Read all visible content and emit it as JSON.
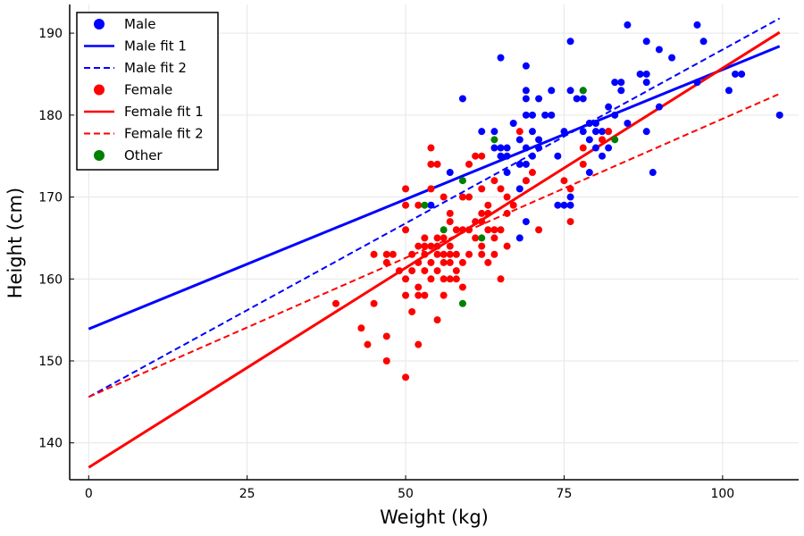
{
  "chart_data": {
    "type": "scatter",
    "title": "",
    "xlabel": "Weight (kg)",
    "ylabel": "Height (cm)",
    "xlim": [
      -3,
      112
    ],
    "ylim": [
      135.5,
      193.5
    ],
    "xticks": [
      0,
      25,
      50,
      75,
      100
    ],
    "yticks": [
      140,
      150,
      160,
      170,
      180,
      190
    ],
    "grid": true,
    "legend_position": "top-left",
    "colors": {
      "male": "#0000ff",
      "female": "#ff0000",
      "other": "#008000"
    },
    "legend": [
      {
        "label": "Male",
        "kind": "marker",
        "color": "#0000ff"
      },
      {
        "label": "Male fit 1",
        "kind": "solid",
        "color": "#0000ff"
      },
      {
        "label": "Male fit 2",
        "kind": "dashed",
        "color": "#0000ff"
      },
      {
        "label": "Female",
        "kind": "marker",
        "color": "#ff0000"
      },
      {
        "label": "Female fit 1",
        "kind": "solid",
        "color": "#ff0000"
      },
      {
        "label": "Female fit 2",
        "kind": "dashed",
        "color": "#ff0000"
      },
      {
        "label": "Other",
        "kind": "marker",
        "color": "#008000"
      }
    ],
    "scatter_series": [
      {
        "name": "Male",
        "color": "#0000ff",
        "points": [
          [
            54,
            169
          ],
          [
            57,
            173
          ],
          [
            59,
            182
          ],
          [
            62,
            178
          ],
          [
            64,
            176
          ],
          [
            64,
            178
          ],
          [
            65,
            187
          ],
          [
            65,
            176
          ],
          [
            65,
            175
          ],
          [
            66,
            176
          ],
          [
            66,
            175
          ],
          [
            66,
            173
          ],
          [
            67,
            179
          ],
          [
            68,
            177
          ],
          [
            68,
            174
          ],
          [
            68,
            171
          ],
          [
            68,
            165
          ],
          [
            69,
            186
          ],
          [
            69,
            183
          ],
          [
            69,
            182
          ],
          [
            69,
            180
          ],
          [
            69,
            176
          ],
          [
            69,
            174
          ],
          [
            69,
            172
          ],
          [
            69,
            167
          ],
          [
            70,
            175
          ],
          [
            70,
            178
          ],
          [
            70,
            180
          ],
          [
            71,
            176
          ],
          [
            71,
            177
          ],
          [
            71,
            182
          ],
          [
            72,
            180
          ],
          [
            73,
            183
          ],
          [
            73,
            180
          ],
          [
            74,
            175
          ],
          [
            74,
            169
          ],
          [
            75,
            178
          ],
          [
            75,
            169
          ],
          [
            76,
            189
          ],
          [
            76,
            183
          ],
          [
            76,
            170
          ],
          [
            76,
            169
          ],
          [
            77,
            182
          ],
          [
            78,
            182
          ],
          [
            78,
            178
          ],
          [
            78,
            183
          ],
          [
            79,
            179
          ],
          [
            79,
            177
          ],
          [
            79,
            173
          ],
          [
            80,
            178
          ],
          [
            80,
            176
          ],
          [
            80,
            179
          ],
          [
            81,
            178
          ],
          [
            81,
            175
          ],
          [
            82,
            178
          ],
          [
            82,
            181
          ],
          [
            82,
            176
          ],
          [
            83,
            180
          ],
          [
            83,
            184
          ],
          [
            84,
            184
          ],
          [
            84,
            183
          ],
          [
            85,
            191
          ],
          [
            85,
            179
          ],
          [
            87,
            185
          ],
          [
            88,
            185
          ],
          [
            88,
            184
          ],
          [
            88,
            189
          ],
          [
            88,
            178
          ],
          [
            89,
            173
          ],
          [
            90,
            188
          ],
          [
            90,
            181
          ],
          [
            92,
            187
          ],
          [
            96,
            191
          ],
          [
            96,
            184
          ],
          [
            97,
            189
          ],
          [
            101,
            183
          ],
          [
            102,
            185
          ],
          [
            103,
            185
          ],
          [
            109,
            180
          ]
        ]
      },
      {
        "name": "Female",
        "color": "#ff0000",
        "points": [
          [
            39,
            157
          ],
          [
            43,
            154
          ],
          [
            44,
            152
          ],
          [
            45,
            163
          ],
          [
            45,
            157
          ],
          [
            47,
            163
          ],
          [
            47,
            162
          ],
          [
            47,
            153
          ],
          [
            47,
            150
          ],
          [
            48,
            163
          ],
          [
            49,
            161
          ],
          [
            50,
            171
          ],
          [
            50,
            169
          ],
          [
            50,
            166
          ],
          [
            50,
            160
          ],
          [
            50,
            158
          ],
          [
            50,
            148
          ],
          [
            51,
            163
          ],
          [
            51,
            156
          ],
          [
            51,
            161
          ],
          [
            52,
            169
          ],
          [
            52,
            164
          ],
          [
            52,
            162
          ],
          [
            52,
            159
          ],
          [
            52,
            158
          ],
          [
            52,
            152
          ],
          [
            53,
            165
          ],
          [
            53,
            164
          ],
          [
            53,
            163
          ],
          [
            53,
            161
          ],
          [
            53,
            158
          ],
          [
            54,
            176
          ],
          [
            54,
            174
          ],
          [
            54,
            171
          ],
          [
            54,
            164
          ],
          [
            54,
            162
          ],
          [
            54,
            160
          ],
          [
            55,
            174
          ],
          [
            55,
            165
          ],
          [
            55,
            164
          ],
          [
            55,
            163
          ],
          [
            55,
            161
          ],
          [
            55,
            155
          ],
          [
            56,
            170
          ],
          [
            56,
            165
          ],
          [
            56,
            163
          ],
          [
            56,
            162
          ],
          [
            56,
            160
          ],
          [
            56,
            158
          ],
          [
            57,
            168
          ],
          [
            57,
            167
          ],
          [
            57,
            164
          ],
          [
            57,
            163
          ],
          [
            57,
            162
          ],
          [
            57,
            160
          ],
          [
            58,
            166
          ],
          [
            58,
            163
          ],
          [
            58,
            161
          ],
          [
            58,
            160
          ],
          [
            59,
            170
          ],
          [
            59,
            166
          ],
          [
            59,
            162
          ],
          [
            59,
            159
          ],
          [
            60,
            174
          ],
          [
            60,
            170
          ],
          [
            60,
            166
          ],
          [
            60,
            163
          ],
          [
            61,
            175
          ],
          [
            61,
            167
          ],
          [
            61,
            165
          ],
          [
            62,
            175
          ],
          [
            62,
            171
          ],
          [
            62,
            168
          ],
          [
            62,
            167
          ],
          [
            62,
            164
          ],
          [
            62,
            163
          ],
          [
            63,
            169
          ],
          [
            63,
            168
          ],
          [
            63,
            166
          ],
          [
            63,
            162
          ],
          [
            64,
            172
          ],
          [
            64,
            166
          ],
          [
            64,
            165
          ],
          [
            64,
            163
          ],
          [
            65,
            171
          ],
          [
            65,
            166
          ],
          [
            65,
            160
          ],
          [
            66,
            170
          ],
          [
            66,
            168
          ],
          [
            66,
            164
          ],
          [
            67,
            169
          ],
          [
            68,
            178
          ],
          [
            69,
            172
          ],
          [
            70,
            173
          ],
          [
            71,
            166
          ],
          [
            75,
            172
          ],
          [
            76,
            171
          ],
          [
            76,
            167
          ],
          [
            78,
            176
          ],
          [
            78,
            174
          ],
          [
            81,
            177
          ],
          [
            82,
            178
          ]
        ]
      },
      {
        "name": "Other",
        "color": "#008000",
        "points": [
          [
            53,
            169
          ],
          [
            56,
            166
          ],
          [
            59,
            157
          ],
          [
            59,
            172
          ],
          [
            62,
            165
          ],
          [
            64,
            177
          ],
          [
            78,
            183
          ],
          [
            83,
            177
          ]
        ]
      }
    ],
    "line_series": [
      {
        "name": "Male fit 1",
        "color": "#0000ff",
        "dash": "solid",
        "x": [
          0,
          109
        ],
        "y": [
          153.9,
          188.4
        ]
      },
      {
        "name": "Male fit 2",
        "color": "#0000ff",
        "dash": "dashed",
        "x": [
          0,
          109
        ],
        "y": [
          145.6,
          191.8
        ]
      },
      {
        "name": "Female fit 1",
        "color": "#ff0000",
        "dash": "solid",
        "x": [
          0,
          109
        ],
        "y": [
          137.0,
          190.1
        ]
      },
      {
        "name": "Female fit 2",
        "color": "#ff0000",
        "dash": "dashed",
        "x": [
          0,
          109
        ],
        "y": [
          145.6,
          182.6
        ]
      }
    ]
  }
}
